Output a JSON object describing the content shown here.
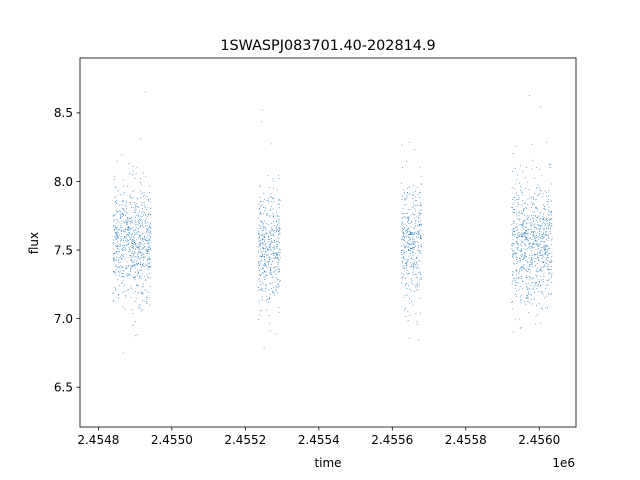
{
  "chart_data": {
    "type": "scatter",
    "title": "1SWASPJ083701.40-202814.9",
    "xlabel": "time",
    "ylabel": "flux",
    "x_offset_label": "1e6",
    "xlim": [
      2.45475,
      2.4561
    ],
    "ylim": [
      6.21,
      8.9
    ],
    "x_ticks": [
      {
        "value": 2.4548,
        "label": "2.4548"
      },
      {
        "value": 2.455,
        "label": "2.4550"
      },
      {
        "value": 2.4552,
        "label": "2.4552"
      },
      {
        "value": 2.4554,
        "label": "2.4554"
      },
      {
        "value": 2.4556,
        "label": "2.4556"
      },
      {
        "value": 2.4558,
        "label": "2.4558"
      },
      {
        "value": 2.456,
        "label": "2.4560"
      }
    ],
    "y_ticks": [
      {
        "value": 6.5,
        "label": "6.5"
      },
      {
        "value": 7.0,
        "label": "7.0"
      },
      {
        "value": 7.5,
        "label": "7.5"
      },
      {
        "value": 8.0,
        "label": "8.0"
      },
      {
        "value": 8.5,
        "label": "8.5"
      }
    ],
    "grid": false,
    "marker_color": "#1f77b4",
    "series": [
      {
        "observing_seasons": [
          {
            "x_range": [
              2.45484,
              2.454943
            ],
            "flux_center": 7.55,
            "flux_spread": 0.2
          },
          {
            "x_range": [
              2.455235,
              2.455295
            ],
            "flux_center": 7.5,
            "flux_spread": 0.22
          },
          {
            "x_range": [
              2.455625,
              2.45568
            ],
            "flux_center": 7.55,
            "flux_spread": 0.22
          },
          {
            "x_range": [
              2.455925,
              2.456035
            ],
            "flux_center": 7.55,
            "flux_spread": 0.22
          }
        ]
      }
    ]
  }
}
